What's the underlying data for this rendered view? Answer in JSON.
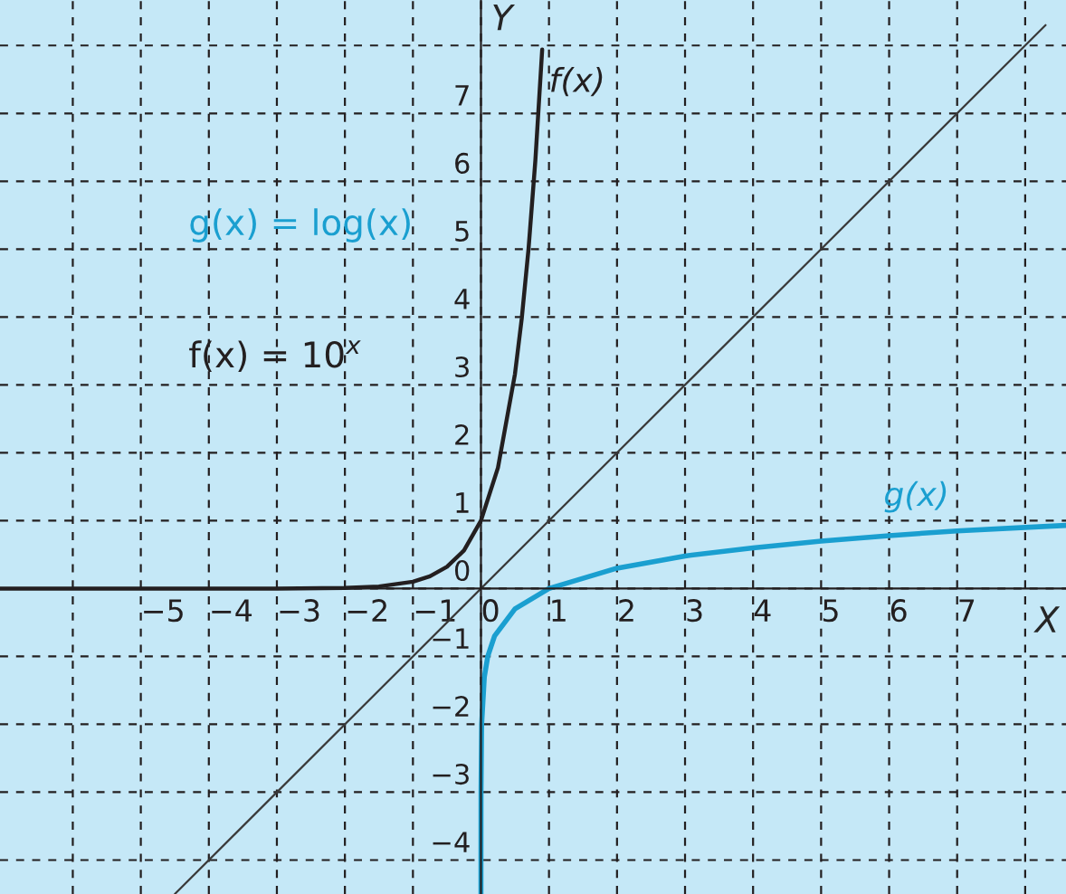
{
  "chart_data": {
    "type": "line",
    "xlabel": "X",
    "ylabel": "Y",
    "xlim": [
      -7.07,
      8.6
    ],
    "ylim": [
      -4.5,
      8.67
    ],
    "xticks": [
      {
        "value": -6,
        "label": null
      },
      -5,
      -4,
      -3,
      -2,
      -1,
      0,
      1,
      2,
      3,
      4,
      5,
      6,
      7,
      {
        "value": 8,
        "label": null
      }
    ],
    "yticks": [
      -4,
      -3,
      -2,
      -1,
      0,
      1,
      2,
      3,
      4,
      5,
      6,
      7,
      {
        "value": 8,
        "label": null
      }
    ],
    "grid": true,
    "legend": false,
    "line_style": "solid",
    "marker": "none",
    "annotations": [
      "g(x) = log(x)",
      "f(x) = 10$^{x}$"
    ],
    "series": [
      {
        "name": "f(x)",
        "color": "#231f20",
        "x": [
          -7.07,
          -5,
          -3,
          -2,
          -1.5,
          -1,
          -0.75,
          -0.5,
          -0.25,
          0,
          0.25,
          0.5,
          0.6,
          0.7,
          0.8,
          0.9
        ],
        "values": [
          0,
          0,
          0,
          0.01,
          0.03,
          0.1,
          0.18,
          0.32,
          0.56,
          1,
          1.78,
          3.16,
          3.98,
          5.01,
          6.31,
          7.94
        ]
      },
      {
        "name": "g(x)",
        "color": "#1a9fd0",
        "x": [
          3e-05,
          0.0001,
          0.001,
          0.01,
          0.05,
          0.1,
          0.2,
          0.5,
          1,
          2,
          3,
          4,
          5,
          6,
          7,
          8,
          8.6
        ],
        "values": [
          -4.5,
          -4,
          -3,
          -2,
          -1.3,
          -1,
          -0.7,
          -0.3,
          0,
          0.3,
          0.48,
          0.6,
          0.7,
          0.78,
          0.85,
          0.9,
          0.93
        ]
      },
      {
        "color": "#3a3a3a",
        "x": [
          -4.5,
          8.3
        ],
        "values": [
          -4.5,
          8.3
        ]
      }
    ]
  }
}
